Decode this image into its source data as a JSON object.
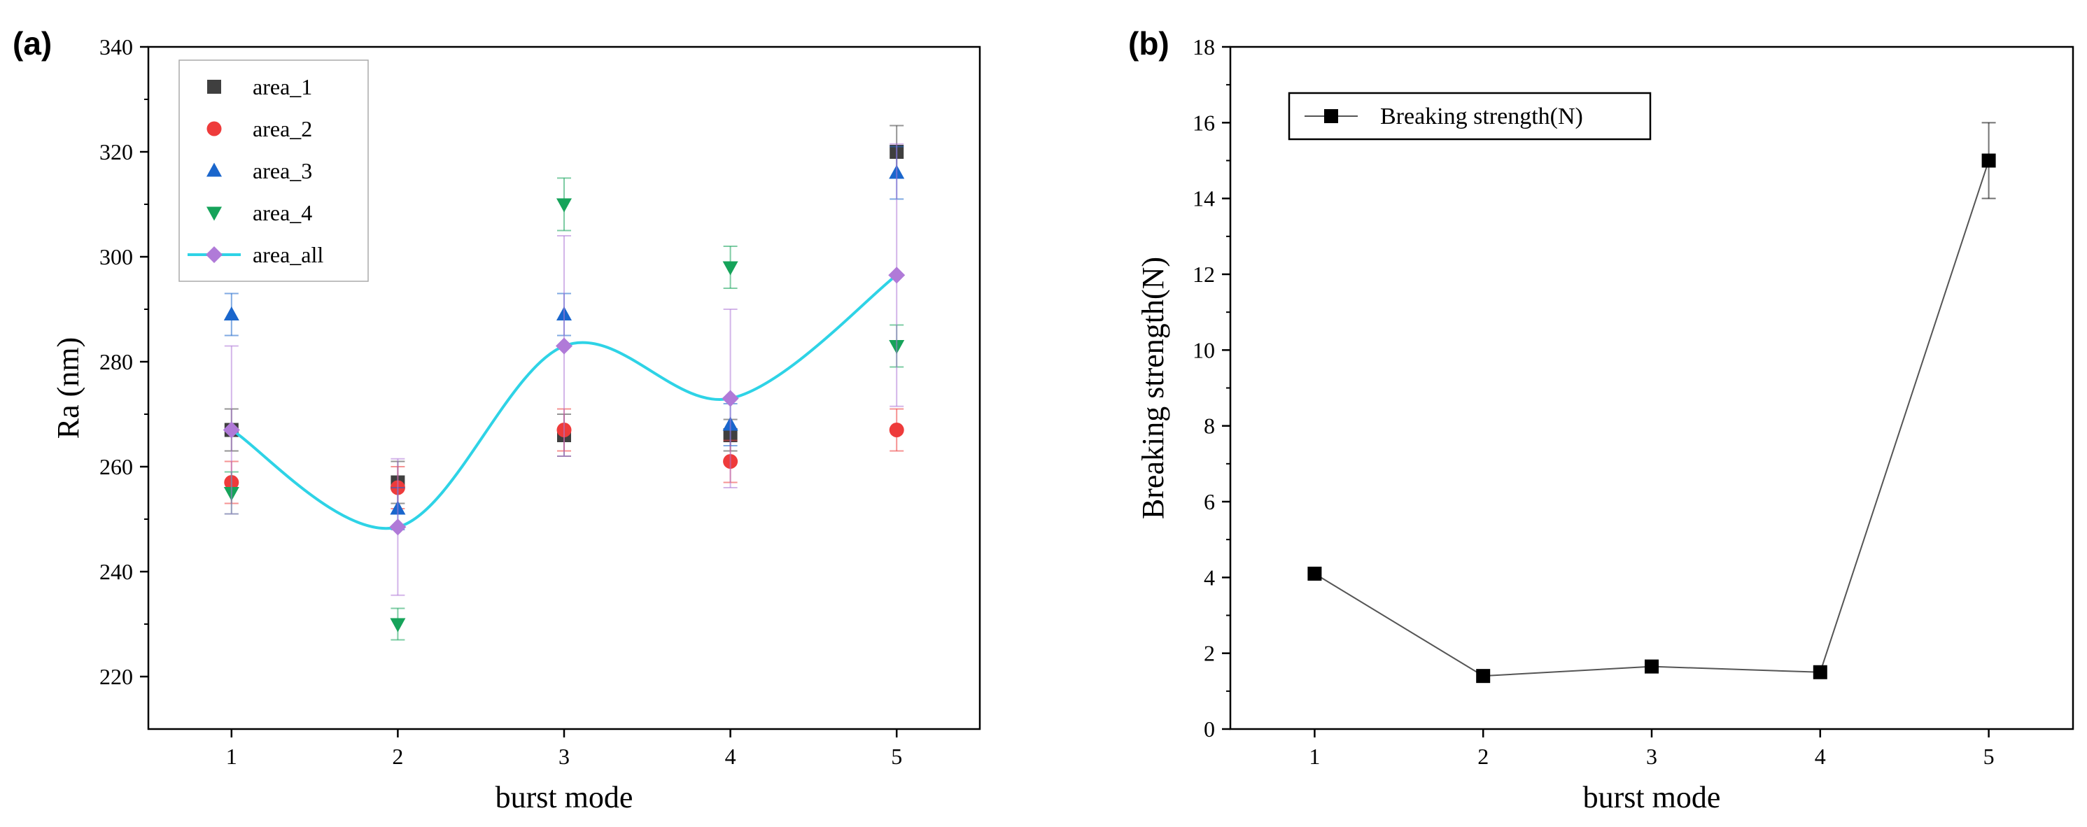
{
  "chart_data": [
    {
      "panel": "(a)",
      "type": "scatter",
      "xlabel": "burst mode",
      "ylabel": "Ra (nm)",
      "xlim": [
        0.5,
        5.5
      ],
      "ylim": [
        210,
        340
      ],
      "x_ticks": [
        1,
        2,
        3,
        4,
        5
      ],
      "y_ticks": [
        220,
        240,
        260,
        280,
        300,
        320,
        340
      ],
      "legend_position": "top-left",
      "series": [
        {
          "name": "area_1",
          "marker": "square",
          "color": "#3f3f3f",
          "x": [
            1,
            2,
            3,
            4,
            5
          ],
          "values": [
            267,
            257,
            266,
            266,
            320
          ],
          "errors": [
            4,
            4,
            4,
            3,
            5
          ]
        },
        {
          "name": "area_2",
          "marker": "circle",
          "color": "#ee3b3b",
          "x": [
            1,
            2,
            3,
            4,
            5
          ],
          "values": [
            257,
            256,
            267,
            261,
            267
          ],
          "errors": [
            4,
            4,
            4,
            4,
            4
          ]
        },
        {
          "name": "area_3",
          "marker": "triangle-up",
          "color": "#1a66cc",
          "x": [
            1,
            2,
            3,
            4,
            5
          ],
          "values": [
            289,
            252,
            289,
            268,
            316
          ],
          "errors": [
            4,
            4,
            4,
            4,
            5
          ]
        },
        {
          "name": "area_4",
          "marker": "triangle-down",
          "color": "#16a35a",
          "x": [
            1,
            2,
            3,
            4,
            5
          ],
          "values": [
            255,
            230,
            310,
            298,
            283
          ],
          "errors": [
            4,
            3,
            5,
            4,
            4
          ]
        },
        {
          "name": "area_all",
          "marker": "diamond",
          "color": "#b07ad8",
          "line_color": "#2ed3e6",
          "smooth": true,
          "x": [
            1,
            2,
            3,
            4,
            5
          ],
          "values": [
            267,
            248.5,
            283,
            273,
            296.5
          ],
          "errors": [
            16,
            13,
            21,
            17,
            25
          ]
        }
      ]
    },
    {
      "panel": "(b)",
      "type": "line",
      "xlabel": "burst mode",
      "ylabel": "Breaking strength(N)",
      "xlim": [
        0.5,
        5.5
      ],
      "ylim": [
        0,
        18
      ],
      "x_ticks": [
        1,
        2,
        3,
        4,
        5
      ],
      "y_ticks": [
        0,
        2,
        4,
        6,
        8,
        10,
        12,
        14,
        16,
        18
      ],
      "legend_position": "top-left",
      "series": [
        {
          "name": "Breaking strength(N)",
          "marker": "square",
          "color": "#000000",
          "x": [
            1,
            2,
            3,
            4,
            5
          ],
          "values": [
            4.1,
            1.4,
            1.65,
            1.5,
            15
          ],
          "errors": [
            0,
            0,
            0,
            0,
            1
          ]
        }
      ]
    }
  ]
}
